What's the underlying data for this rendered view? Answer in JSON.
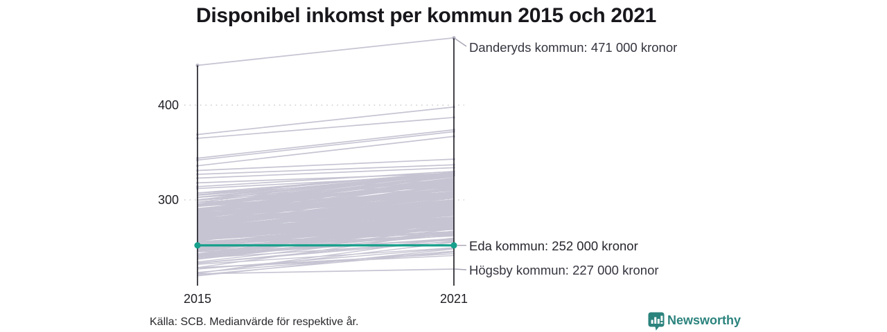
{
  "title": "Disponibel inkomst per kommun 2015 och 2021",
  "footer": {
    "source": "Källa: SCB. Medianvärde för respektive år.",
    "brand": "Newsworthy"
  },
  "colors": {
    "accent_green": "#17a08c",
    "line_gray": "#c6c4d2",
    "connector_gray": "#a5a3b2",
    "axis_black": "#16161d",
    "grid_gray": "#cccccc",
    "brand_teal": "#2b837d"
  },
  "chart_data": {
    "type": "line",
    "subtype": "slope-chart",
    "x": [
      2015,
      2021
    ],
    "x_labels": [
      "2015",
      "2021"
    ],
    "y_ticks": [
      400,
      300
    ],
    "y_tick_labels": [
      "400",
      "300"
    ],
    "ylim": [
      210,
      480
    ],
    "grid": "dotted-horizontal",
    "legend_position": "none",
    "annotations": [
      {
        "series": "Danderyds kommun",
        "label": "Danderyds kommun: 471 000 kronor",
        "values": [
          442,
          471
        ],
        "highlight": false
      },
      {
        "series": "Eda kommun",
        "label": "Eda kommun: 252 000 kronor",
        "values": [
          252,
          252
        ],
        "highlight": true
      },
      {
        "series": "Högsby kommun",
        "label": "Högsby kommun: 227 000 kronor",
        "values": [
          222,
          227
        ],
        "highlight": false
      }
    ],
    "background_lines": [
      [
        369,
        398
      ],
      [
        365,
        387
      ],
      [
        344,
        374
      ],
      [
        342,
        372
      ],
      [
        336,
        367
      ],
      [
        331,
        343
      ],
      [
        327,
        337
      ],
      [
        323,
        334
      ],
      [
        318,
        328
      ],
      [
        314,
        330
      ],
      [
        312,
        326
      ]
    ],
    "background_bundle": {
      "comment": "dense mass of remaining municipality lines, values in 1000s kronor",
      "count": 260,
      "seed": 7,
      "v2015_min": 219,
      "v2015_max": 314,
      "delta_min": 12,
      "delta_max": 38,
      "v2021_min": 228,
      "v2021_max": 329
    }
  }
}
